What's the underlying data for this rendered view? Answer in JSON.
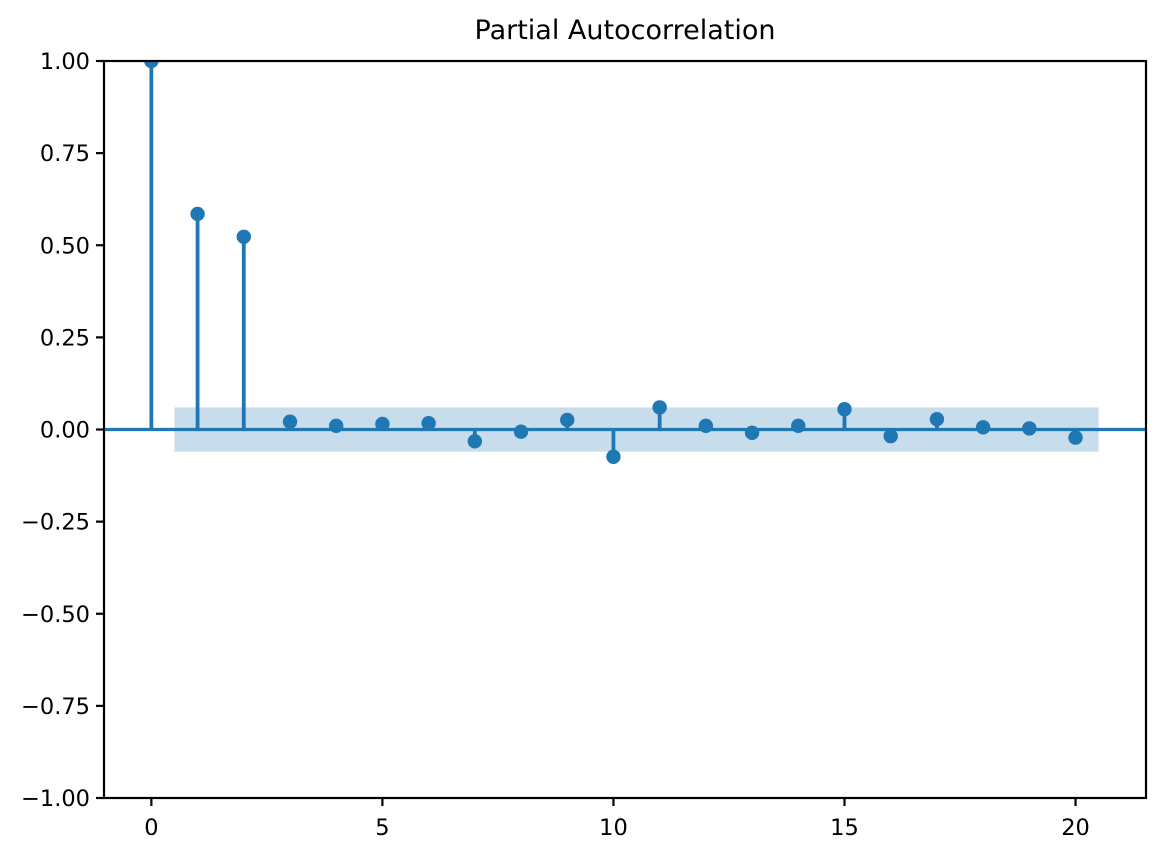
{
  "figure": {
    "background_color": "#ffffff"
  },
  "chart_data": {
    "type": "stem",
    "title": "Partial Autocorrelation",
    "xlabel": "",
    "ylabel": "",
    "x": [
      0,
      1,
      2,
      3,
      4,
      5,
      6,
      7,
      8,
      9,
      10,
      11,
      12,
      13,
      14,
      15,
      16,
      17,
      18,
      19,
      20
    ],
    "values": [
      1.0,
      0.585,
      0.523,
      0.021,
      0.01,
      0.015,
      0.017,
      -0.032,
      -0.006,
      0.026,
      -0.074,
      0.06,
      0.01,
      -0.009,
      0.01,
      0.055,
      -0.018,
      0.028,
      0.006,
      0.003,
      -0.022
    ],
    "confidence_band": {
      "lower": -0.06,
      "upper": 0.06,
      "x_start": 0.5,
      "x_end": 20.5
    },
    "zero_line": 0.0,
    "xlim": [
      -1.025,
      21.525
    ],
    "ylim": [
      -1.0,
      1.0
    ],
    "x_ticks": [
      0,
      5,
      10,
      15,
      20
    ],
    "x_tick_labels": [
      "0",
      "5",
      "10",
      "15",
      "20"
    ],
    "y_ticks": [
      1.0,
      0.75,
      0.5,
      0.25,
      0.0,
      -0.25,
      -0.5,
      -0.75,
      -1.0
    ],
    "y_tick_labels": [
      "1.00",
      "0.75",
      "0.50",
      "0.25",
      "0.00",
      "−0.25",
      "−0.50",
      "−0.75",
      "−1.00"
    ],
    "grid": false,
    "legend": null,
    "colors": {
      "stem": "#1f77b4",
      "marker": "#1f77b4",
      "zero_line": "#1f77b4",
      "band": "#1f77b4",
      "band_opacity": 0.25,
      "axis": "#000000",
      "background": "#ffffff"
    }
  }
}
